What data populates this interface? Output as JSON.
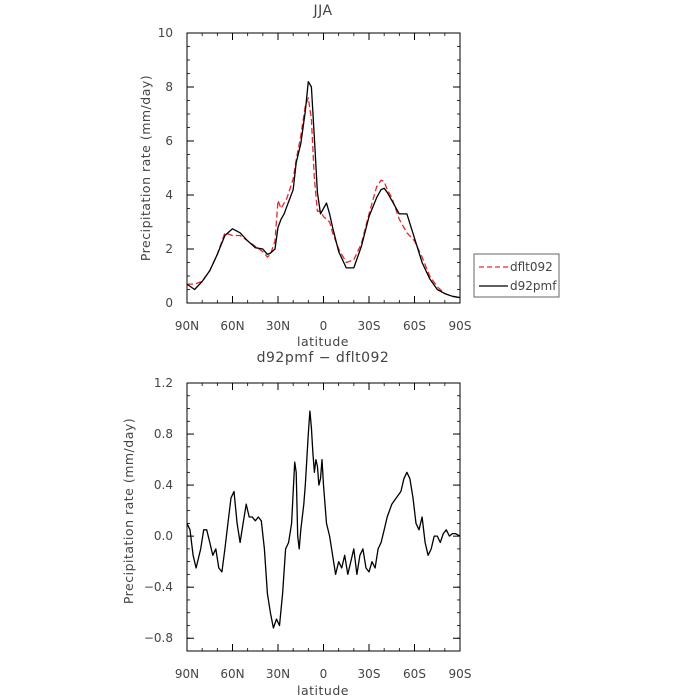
{
  "chart_data": [
    {
      "type": "line",
      "title": "JJA",
      "xlabel": "latitude",
      "ylabel": "Precipitation rate (mm/day)",
      "xlim": [
        90,
        -90
      ],
      "ylim": [
        0,
        10
      ],
      "x_ticks": [
        90,
        60,
        30,
        0,
        -30,
        -60,
        -90
      ],
      "x_tick_labels": [
        "90N",
        "60N",
        "30N",
        "0",
        "30S",
        "60S",
        "90S"
      ],
      "y_ticks": [
        0,
        2,
        4,
        6,
        8,
        10
      ],
      "y_tick_labels": [
        "0",
        "2",
        "4",
        "6",
        "8",
        "10"
      ],
      "legend_position": "right",
      "series": [
        {
          "name": "dflt092",
          "color": "#e8262d",
          "dash": "dashed",
          "x": [
            90,
            85,
            80,
            75,
            70,
            65,
            60,
            55,
            50,
            45,
            40,
            37,
            35,
            32,
            30,
            28,
            26,
            24,
            20,
            18,
            15,
            12,
            10,
            8,
            6,
            4,
            2,
            0,
            -2,
            -4,
            -6,
            -10,
            -15,
            -20,
            -25,
            -30,
            -35,
            -38,
            -40,
            -42,
            -45,
            -50,
            -55,
            -60,
            -65,
            -70,
            -75,
            -80,
            -85,
            -90
          ],
          "y": [
            0.7,
            0.7,
            0.8,
            1.2,
            1.8,
            2.6,
            2.5,
            2.5,
            2.3,
            2.1,
            1.9,
            1.7,
            1.8,
            2.3,
            3.8,
            3.5,
            3.7,
            3.9,
            4.6,
            5.3,
            6.2,
            7.3,
            7.6,
            6.8,
            4.6,
            3.4,
            3.4,
            3.2,
            3.1,
            3.0,
            2.6,
            2.0,
            1.5,
            1.6,
            2.2,
            3.3,
            4.3,
            4.55,
            4.5,
            4.2,
            3.9,
            3.1,
            2.6,
            2.3,
            1.7,
            1.0,
            0.6,
            0.35,
            0.25,
            0.2
          ]
        },
        {
          "name": "d92pmf",
          "color": "#000000",
          "dash": "solid",
          "x": [
            90,
            85,
            80,
            75,
            70,
            65,
            60,
            55,
            50,
            45,
            40,
            37,
            35,
            32,
            30,
            28,
            26,
            24,
            20,
            18,
            15,
            12,
            10,
            8,
            6,
            4,
            2,
            0,
            -2,
            -4,
            -6,
            -10,
            -15,
            -20,
            -25,
            -30,
            -35,
            -38,
            -40,
            -42,
            -45,
            -50,
            -55,
            -60,
            -65,
            -70,
            -75,
            -80,
            -85,
            -90
          ],
          "y": [
            0.7,
            0.5,
            0.8,
            1.2,
            1.8,
            2.5,
            2.75,
            2.6,
            2.3,
            2.05,
            2.0,
            1.8,
            1.85,
            2.0,
            2.8,
            3.1,
            3.3,
            3.6,
            4.2,
            5.2,
            5.9,
            7.1,
            8.2,
            8.0,
            6.1,
            4.1,
            3.3,
            3.5,
            3.7,
            3.3,
            2.8,
            1.9,
            1.3,
            1.3,
            2.1,
            3.2,
            3.9,
            4.2,
            4.25,
            4.1,
            3.8,
            3.3,
            3.3,
            2.4,
            1.5,
            0.9,
            0.5,
            0.35,
            0.25,
            0.2
          ]
        }
      ]
    },
    {
      "type": "line",
      "title": "d92pmf − dflt092",
      "xlabel": "latitude",
      "ylabel": "Precipitation rate (mm/day)",
      "xlim": [
        90,
        -90
      ],
      "ylim": [
        -0.9,
        1.2
      ],
      "x_ticks": [
        90,
        60,
        30,
        0,
        -30,
        -60,
        -90
      ],
      "x_tick_labels": [
        "90N",
        "60N",
        "30N",
        "0",
        "30S",
        "60S",
        "90S"
      ],
      "y_ticks": [
        -0.8,
        -0.4,
        0.0,
        0.4,
        0.8,
        1.2
      ],
      "y_tick_labels": [
        "−0.8",
        "−0.4",
        "0.0",
        "0.4",
        "0.8",
        "1.2"
      ],
      "series": [
        {
          "name": "",
          "color": "#000000",
          "dash": "solid",
          "x": [
            90,
            88,
            86,
            84,
            81,
            79,
            77,
            75,
            73,
            71,
            69,
            67,
            65,
            63,
            61,
            59,
            57,
            55,
            53,
            51,
            50,
            49,
            47,
            45,
            43,
            41,
            39,
            37,
            35,
            33,
            31,
            29,
            27,
            25,
            23,
            21,
            20,
            19,
            18,
            17,
            16,
            15,
            14,
            13,
            12,
            11,
            10,
            9,
            8,
            7,
            6,
            5,
            4,
            3,
            2,
            1,
            0,
            -2,
            -4,
            -6,
            -8,
            -10,
            -12,
            -14,
            -16,
            -18,
            -20,
            -22,
            -24,
            -26,
            -28,
            -30,
            -32,
            -34,
            -36,
            -38,
            -40,
            -42,
            -45,
            -48,
            -51,
            -53,
            -55,
            -57,
            -59,
            -61,
            -63,
            -65,
            -67,
            -69,
            -71,
            -73,
            -75,
            -77,
            -79,
            -81,
            -83,
            -85,
            -87,
            -90
          ],
          "y": [
            0.1,
            0.05,
            -0.15,
            -0.25,
            -0.1,
            0.05,
            0.05,
            -0.05,
            -0.15,
            -0.1,
            -0.25,
            -0.28,
            -0.1,
            0.1,
            0.3,
            0.35,
            0.1,
            -0.05,
            0.1,
            0.25,
            0.2,
            0.15,
            0.15,
            0.12,
            0.15,
            0.12,
            -0.1,
            -0.45,
            -0.6,
            -0.72,
            -0.65,
            -0.7,
            -0.45,
            -0.1,
            -0.05,
            0.1,
            0.35,
            0.58,
            0.5,
            0.0,
            -0.1,
            0.05,
            0.15,
            0.25,
            0.4,
            0.6,
            0.8,
            0.98,
            0.85,
            0.65,
            0.5,
            0.6,
            0.55,
            0.4,
            0.45,
            0.6,
            0.4,
            0.1,
            0.0,
            -0.15,
            -0.3,
            -0.2,
            -0.25,
            -0.15,
            -0.3,
            -0.2,
            -0.1,
            -0.3,
            -0.15,
            -0.1,
            -0.25,
            -0.28,
            -0.2,
            -0.25,
            -0.1,
            -0.05,
            0.05,
            0.15,
            0.25,
            0.3,
            0.35,
            0.45,
            0.5,
            0.45,
            0.3,
            0.1,
            0.05,
            0.15,
            -0.05,
            -0.15,
            -0.1,
            0.0,
            0.0,
            -0.05,
            0.02,
            0.05,
            0.0,
            0.02,
            0.02,
            0.0
          ]
        }
      ]
    }
  ]
}
